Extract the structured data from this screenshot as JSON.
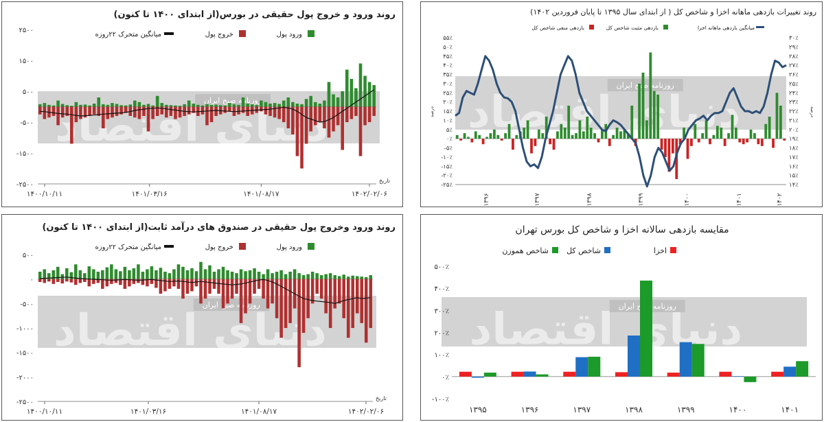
{
  "chart_data": [
    {
      "id": "equity_flows",
      "type": "bar",
      "title": "روند ورود و خروج پول حقیقی در بورس(از ابتدای ۱۴۰۰ تا کنون)",
      "legend": [
        "ورود پول",
        "خروج پول",
        "میانگین متحرک ۲۲روزه"
      ],
      "ylim": [
        -2500,
        2500
      ],
      "y_ticks": [
        "۲۵۰۰",
        "۱۵۰۰",
        "۵۰۰",
        "-۵۰۰",
        "-۱۵۰۰",
        "-۲۵۰۰"
      ],
      "y_tick_values": [
        2500,
        1500,
        500,
        -500,
        -1500,
        -2500
      ],
      "x_ticks": [
        "۱۴۰۰/۱۰/۱۱",
        "۱۴۰۱/۰۳/۱۶",
        "۱۴۰۱/۰۸/۱۷",
        "۱۴۰۲/۰۲/۰۶"
      ],
      "xlabel": "تاریخ",
      "grid": false,
      "colors": {
        "inflow": "#2e8b2e",
        "outflow": "#b03030",
        "ma": "#111111"
      },
      "inflow": [
        80,
        120,
        60,
        40,
        200,
        90,
        50,
        30,
        150,
        60,
        70,
        40,
        100,
        300,
        80,
        60,
        120,
        90,
        50,
        40,
        70,
        200,
        150,
        60,
        90,
        40,
        350,
        120,
        60,
        50,
        40,
        30,
        80,
        200,
        100,
        60,
        40,
        90,
        60,
        70,
        50,
        40,
        120,
        80,
        60,
        300,
        100,
        80,
        60,
        200,
        150,
        100,
        120,
        90,
        200,
        300,
        150,
        100,
        80,
        250,
        350,
        150,
        100,
        200,
        800,
        400,
        300,
        500,
        1200,
        900,
        600,
        1400,
        1000,
        800,
        700
      ],
      "outflow": [
        -250,
        -400,
        -350,
        -300,
        -600,
        -350,
        -300,
        -1200,
        -500,
        -400,
        -350,
        -300,
        -250,
        -300,
        -700,
        -400,
        -350,
        -300,
        -250,
        -200,
        -300,
        -350,
        -400,
        -300,
        -800,
        -400,
        -300,
        -250,
        -350,
        -300,
        -400,
        -350,
        -300,
        -250,
        -200,
        -300,
        -250,
        -600,
        -500,
        -300,
        -250,
        -200,
        -150,
        -300,
        -250,
        -200,
        -300,
        -250,
        -200,
        -150,
        -250,
        -300,
        -350,
        -400,
        -500,
        -700,
        -900,
        -1600,
        -2000,
        -1200,
        -800,
        -600,
        -500,
        -700,
        -1000,
        -800,
        -600,
        -1400,
        -500,
        -400,
        -300,
        -1600,
        -600,
        -500,
        -300
      ],
      "moving_avg": [
        -150,
        -160,
        -180,
        -200,
        -220,
        -230,
        -240,
        -260,
        -280,
        -300,
        -290,
        -280,
        -270,
        -250,
        -240,
        -230,
        -220,
        -210,
        -200,
        -180,
        -160,
        -120,
        -100,
        -80,
        -60,
        -50,
        -40,
        -50,
        -70,
        -90,
        -110,
        -130,
        -150,
        -160,
        -170,
        -160,
        -150,
        -140,
        -130,
        -120,
        -130,
        -140,
        -150,
        -160,
        -150,
        -140,
        -130,
        -120,
        -110,
        -100,
        -90,
        -80,
        -60,
        -40,
        -20,
        -40,
        -80,
        -150,
        -250,
        -350,
        -400,
        -450,
        -500,
        -480,
        -420,
        -350,
        -250,
        -150,
        -50,
        50,
        150,
        250,
        350,
        450,
        550
      ]
    },
    {
      "id": "monthly_returns",
      "type": "bar",
      "title": "روند تغییرات بازدهی ماهانه اخزا و شاخص کل ( از ابتدای سال ۱۳۹۵ تا پایان فروردین ۱۴۰۲)",
      "legend": [
        "میانگین بازدهی ماهانه اخزا",
        "بازدهی مثبت شاخص کل",
        "بازدهی منفی شاخص کل"
      ],
      "left_ylabel": "درصد",
      "right_ylabel": "درصد",
      "left_ylim": [
        -25,
        55
      ],
      "left_ticks": [
        "۵۵٪",
        "۵۰٪",
        "۴۵٪",
        "۴۰٪",
        "۳۵٪",
        "۳۰٪",
        "۲۵٪",
        "۲۰٪",
        "۱۵٪",
        "۱۰٪",
        "۵٪",
        "۰٪",
        "-۵٪",
        "-۱۰٪",
        "-۱۵٪",
        "-۲۰٪",
        "-۲۵٪"
      ],
      "left_tick_values": [
        55,
        50,
        45,
        40,
        35,
        30,
        25,
        20,
        15,
        10,
        5,
        0,
        -5,
        -10,
        -15,
        -20,
        -25
      ],
      "right_ylim": [
        14,
        30
      ],
      "right_ticks": [
        "۳۰٪",
        "۲۹٪",
        "۲۸٪",
        "۲۷٪",
        "۲۶٪",
        "۲۵٪",
        "۲۴٪",
        "۲۳٪",
        "۲۲٪",
        "۲۱٪",
        "۲۰٪",
        "۱۹٪",
        "۱۸٪",
        "۱۷٪",
        "۱۶٪",
        "۱۵٪",
        "۱۴٪"
      ],
      "right_tick_values": [
        30,
        29,
        28,
        27,
        26,
        25,
        24,
        23,
        22,
        21,
        20,
        19,
        18,
        17,
        16,
        15,
        14
      ],
      "x_ticks": [
        "۱۳۹۶",
        "۱۳۹۷",
        "۱۳۹۸",
        "۱۳۹۹",
        "۱۴۰۰",
        "۱۴۰۱",
        "۱۴۰۲"
      ],
      "colors": {
        "positive": "#2e8b2e",
        "negative": "#cc2222",
        "line": "#2c4f77"
      },
      "index_returns": [
        2,
        -1,
        3,
        1,
        -2,
        4,
        2,
        -3,
        1,
        3,
        5,
        2,
        -1,
        3,
        8,
        -6,
        2,
        4,
        6,
        10,
        -8,
        -4,
        5,
        3,
        12,
        -3,
        -6,
        4,
        8,
        6,
        18,
        2,
        3,
        10,
        4,
        12,
        6,
        3,
        -2,
        5,
        8,
        -4,
        2,
        6,
        4,
        5,
        3,
        18,
        -4,
        30,
        36,
        10,
        47,
        26,
        24,
        -6,
        -10,
        -18,
        -8,
        -22,
        -3,
        6,
        -11,
        -4,
        8,
        -2,
        3,
        10,
        -3,
        2,
        7,
        6,
        -4,
        3,
        13,
        6,
        -2,
        -3,
        -2,
        5,
        3,
        -3,
        -4,
        8,
        12,
        -5,
        25,
        18,
        -1
      ],
      "akhza_avg": [
        21.5,
        21.8,
        23.5,
        24.2,
        24.0,
        23.8,
        25.0,
        26.5,
        28.0,
        27.5,
        26.5,
        25.0,
        24.0,
        23.5,
        23.4,
        23.0,
        22.0,
        20.0,
        18.0,
        16.5,
        16.0,
        16.2,
        15.8,
        17.0,
        19.0,
        20.5,
        22.0,
        24.0,
        26.0,
        27.0,
        28.0,
        27.5,
        26.0,
        24.0,
        23.0,
        22.0,
        21.5,
        21.0,
        20.5,
        20.0,
        19.8,
        20.5,
        21.0,
        20.8,
        20.5,
        20.0,
        19.5,
        19.0,
        18.5,
        17.0,
        15.0,
        13.8,
        15.0,
        17.0,
        18.0,
        17.5,
        16.5,
        15.5,
        16.0,
        17.5,
        18.5,
        19.0,
        20.0,
        20.5,
        21.0,
        21.2,
        21.5,
        21.0,
        21.5,
        21.8,
        21.8,
        22.0,
        23.0,
        24.0,
        24.5,
        23.5,
        22.5,
        22.0,
        22.0,
        21.8,
        22.0,
        21.8,
        22.5,
        24.0,
        26.0,
        27.5,
        27.3,
        26.8,
        27.0
      ]
    },
    {
      "id": "fixed_income_flows",
      "type": "bar",
      "title": "روند ورود وخروج پول حقیقی در صندوق های درآمد ثابت(از ابتدای ۱۴۰۰ تا کنون)",
      "legend": [
        "ورود پول",
        "خروج پول",
        "میانگین متحرک ۲۲روزه"
      ],
      "ylim": [
        -2500,
        500
      ],
      "y_ticks": [
        "۵۰۰",
        "۰",
        "-۵۰۰",
        "-۱۰۰۰",
        "-۱۵۰۰",
        "-۲۰۰۰",
        "-۲۵۰۰"
      ],
      "y_tick_values": [
        500,
        0,
        -500,
        -1000,
        -1500,
        -2000,
        -2500
      ],
      "x_ticks": [
        "۱۴۰۰/۱۰/۱۱",
        "۱۴۰۱/۰۳/۱۶",
        "۱۴۰۱/۰۸/۱۷",
        "۱۴۰۲/۰۲/۰۶"
      ],
      "xlabel": "تاریخ",
      "grid": false,
      "colors": {
        "inflow": "#2e8b2e",
        "outflow": "#b03030",
        "ma": "#111111"
      },
      "inflow": [
        150,
        200,
        120,
        180,
        250,
        100,
        220,
        140,
        300,
        180,
        120,
        260,
        200,
        150,
        180,
        240,
        300,
        200,
        160,
        250,
        180,
        220,
        300,
        150,
        200,
        260,
        180,
        230,
        150,
        120,
        200,
        300,
        250,
        180,
        220,
        160,
        350,
        200,
        280,
        150,
        200,
        250,
        180,
        150,
        120,
        200,
        160,
        180,
        220,
        150,
        100,
        200,
        120,
        150,
        180,
        100,
        150,
        200,
        120,
        80,
        100,
        150,
        120,
        80,
        100,
        120,
        80,
        60,
        90,
        50,
        70,
        60,
        50,
        40,
        80
      ],
      "outflow": [
        -60,
        -80,
        -50,
        -100,
        -60,
        -90,
        -50,
        -70,
        -120,
        -80,
        -60,
        -150,
        -100,
        -80,
        -200,
        -150,
        -100,
        -80,
        -120,
        -200,
        -150,
        -100,
        -80,
        -120,
        -150,
        -100,
        -180,
        -300,
        -250,
        -200,
        -150,
        -200,
        -400,
        -300,
        -250,
        -150,
        -500,
        -400,
        -300,
        -200,
        -300,
        -600,
        -500,
        -400,
        -300,
        -900,
        -700,
        -500,
        -300,
        -200,
        -400,
        -600,
        -500,
        -800,
        -1200,
        -1000,
        -900,
        -600,
        -1800,
        -1100,
        -800,
        -500,
        -300,
        -400,
        -700,
        -1000,
        -600,
        -500,
        -800,
        -1200,
        -1000,
        -700,
        -900,
        -1300,
        -1000
      ],
      "moving_avg": [
        10,
        15,
        20,
        25,
        30,
        35,
        40,
        30,
        20,
        10,
        5,
        0,
        -5,
        -10,
        -15,
        -20,
        -25,
        -20,
        -15,
        -10,
        -15,
        -20,
        -25,
        -20,
        -15,
        -10,
        -20,
        -30,
        -40,
        -50,
        -45,
        -40,
        -50,
        -60,
        -70,
        -60,
        -50,
        -60,
        -70,
        -80,
        -90,
        -100,
        -110,
        -120,
        -110,
        -100,
        -80,
        -60,
        -40,
        -20,
        -10,
        -30,
        -60,
        -100,
        -150,
        -200,
        -250,
        -300,
        -350,
        -400,
        -420,
        -440,
        -450,
        -460,
        -470,
        -480,
        -500,
        -470,
        -440,
        -420,
        -400,
        -380,
        -400,
        -390,
        -380
      ]
    },
    {
      "id": "annual_comparison",
      "type": "bar",
      "title": "مقایسه بازدهی سالانه اخزا و شاخص کل بورس تهران",
      "categories": [
        "۱۳۹۵",
        "۱۳۹۶",
        "۱۳۹۷",
        "۱۳۹۸",
        "۱۳۹۹",
        "۱۴۰۰",
        "۱۴۰۱"
      ],
      "series": [
        {
          "name": "اخزا",
          "color": "#ee2222",
          "values": [
            22,
            22,
            22,
            20,
            18,
            22,
            22
          ]
        },
        {
          "name": "شاخص کل",
          "color": "#1f6fc5",
          "values": [
            -5,
            23,
            88,
            186,
            156,
            2,
            45
          ]
        },
        {
          "name": "شاخص هموزن",
          "color": "#1c9a2a",
          "values": [
            18,
            10,
            90,
            435,
            148,
            -25,
            70
          ]
        }
      ],
      "ylim": [
        -100,
        500
      ],
      "y_ticks": [
        "۵۰۰٪",
        "۴۰۰٪",
        "۳۰۰٪",
        "۲۰۰٪",
        "۱۰۰٪",
        "۰٪",
        "-۱۰۰٪"
      ],
      "y_tick_values": [
        500,
        400,
        300,
        200,
        100,
        0,
        -100
      ],
      "grid": false
    }
  ],
  "watermark": {
    "brand": "دنیای اقتصاد",
    "sub": "روزنامه صبح ایران"
  }
}
